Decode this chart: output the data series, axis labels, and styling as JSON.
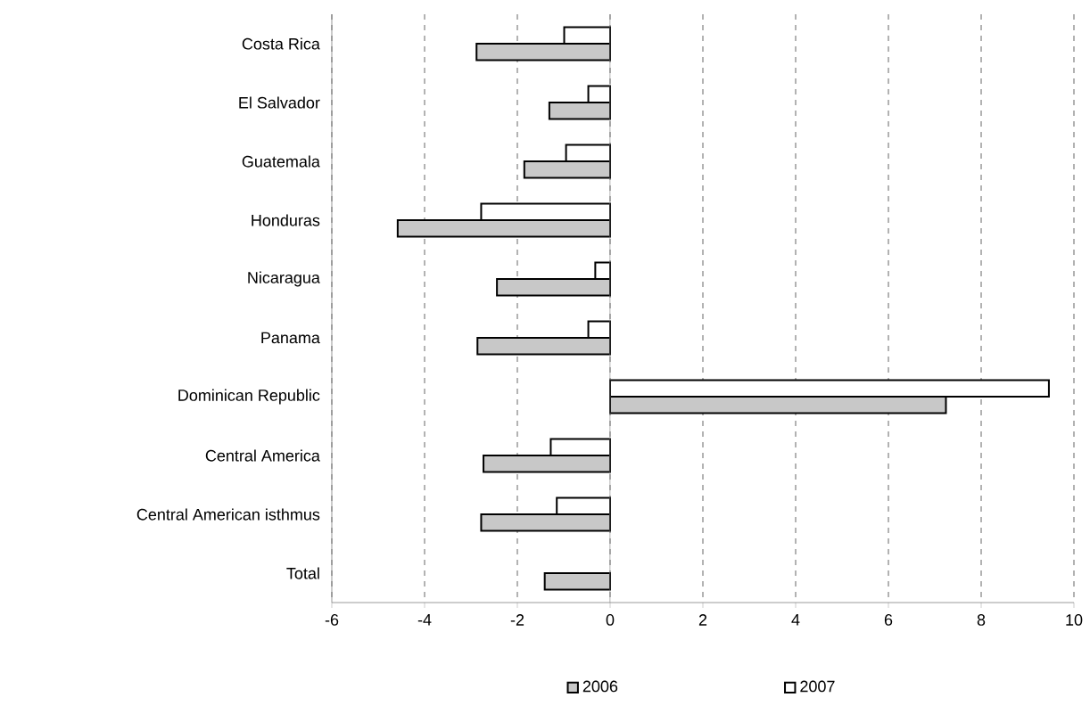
{
  "chart_data": {
    "type": "bar",
    "orientation": "horizontal",
    "categories": [
      "Costa Rica",
      "El Salvador",
      "Guatemala",
      "Honduras",
      "Nicaragua",
      "Panama",
      "Dominican Republic",
      "Central America",
      "Central American isthmus",
      "Total"
    ],
    "series": [
      {
        "name": "2006",
        "color": "#c8c8c8",
        "values": [
          -2.88,
          -1.31,
          -1.85,
          -4.58,
          -2.44,
          -2.86,
          7.24,
          -2.73,
          -2.78,
          -1.41
        ]
      },
      {
        "name": "2007",
        "color": "#ffffff",
        "values": [
          -0.99,
          -0.47,
          -0.95,
          -2.78,
          -0.32,
          -0.47,
          9.46,
          -1.28,
          -1.15,
          null
        ]
      }
    ],
    "xlim": [
      -6,
      10
    ],
    "xticks": [
      -6,
      -4,
      -2,
      0,
      2,
      4,
      6,
      8,
      10
    ],
    "grid": "x",
    "legend": "bottom"
  }
}
